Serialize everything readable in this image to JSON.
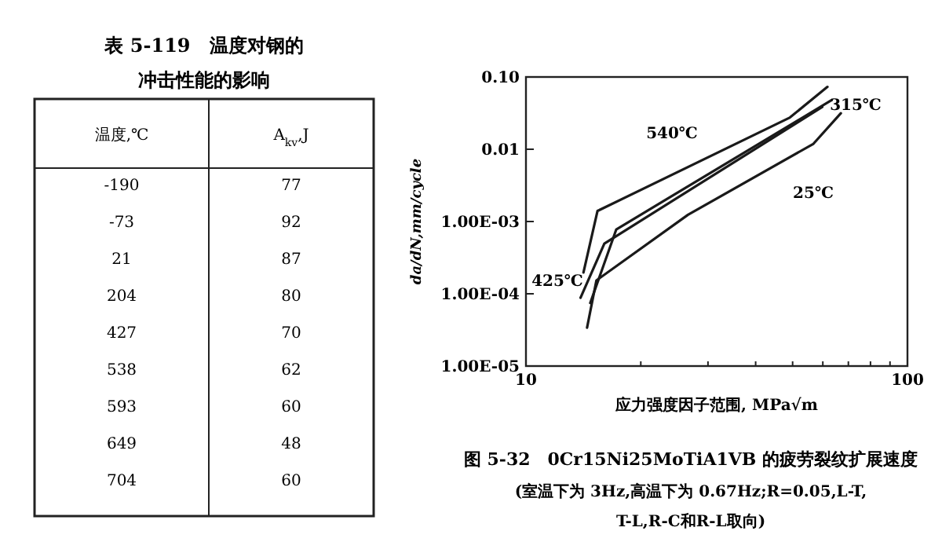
{
  "chart_data": [
    {
      "type": "other",
      "title": "表 5-119　温度对钢的冲击性能的影响",
      "annotations": [
        "温度,℃",
        "A$_{kv}$,J",
        "-190",
        "77",
        "-73",
        "92",
        "21",
        "87",
        "204",
        "80",
        "427",
        "70",
        "538",
        "62",
        "593",
        "60",
        "649",
        "48",
        "704",
        "60"
      ]
    },
    {
      "type": "line",
      "title": "图 5-32　0Cr15Ni25MoTiA1VB 的疲劳裂纹扩展速度",
      "subtitle": "(室温下为 3Hz,高温下为 0.67Hz;R=0.05,L-T,T-L,R-C和R-L取向)",
      "xlabel": "应力强度因子范围, MPa√m",
      "ylabel": "da/dN,mm/cycle",
      "log": "xy",
      "grid": false,
      "marker": "none",
      "line_style": "solid",
      "xlim": [
        10,
        100
      ],
      "xticks": [
        10,
        {
          "value": 20,
          "label": null
        },
        {
          "value": 30,
          "label": null
        },
        {
          "value": 40,
          "label": null
        },
        {
          "value": 50,
          "label": null
        },
        {
          "value": 60,
          "label": null
        },
        {
          "value": 70,
          "label": null
        },
        {
          "value": 80,
          "label": null
        },
        {
          "value": 90,
          "label": null
        },
        100
      ],
      "ylim": [
        1e-05,
        0.1
      ],
      "yticks": [
        {
          "value": 1e-05,
          "label": "1.00E-05"
        },
        {
          "value": 0.0001,
          "label": "1.00E-04"
        },
        {
          "value": 0.001,
          "label": "1.00E-03"
        },
        0.01,
        {
          "value": 0.1,
          "label": "0.10"
        }
      ],
      "series": [
        {
          "name": "540℃",
          "color": "#1a1a1a",
          "x": [
            14.15,
            15.4,
            49.2,
            61.7
          ],
          "values": [
            0.000197,
            0.0014,
            0.0275,
            0.073
          ]
        },
        {
          "name": "425℃",
          "color": "#1a1a1a",
          "x": [
            13.9,
            16.05,
            59.8
          ],
          "values": [
            8.8e-05,
            0.000495,
            0.0385
          ]
        },
        {
          "name": "315℃",
          "color": "#1a1a1a",
          "x": [
            14.74,
            17.25,
            63.3
          ],
          "values": [
            7.46e-05,
            0.000778,
            0.0479
          ]
        },
        {
          "name": "25℃",
          "color": "#1a1a1a",
          "x": [
            14.46,
            15.3,
            26.6,
            56.7,
            66.9
          ],
          "values": [
            3.4e-05,
            0.000153,
            0.00124,
            0.0119,
            0.0315
          ]
        }
      ]
    }
  ]
}
